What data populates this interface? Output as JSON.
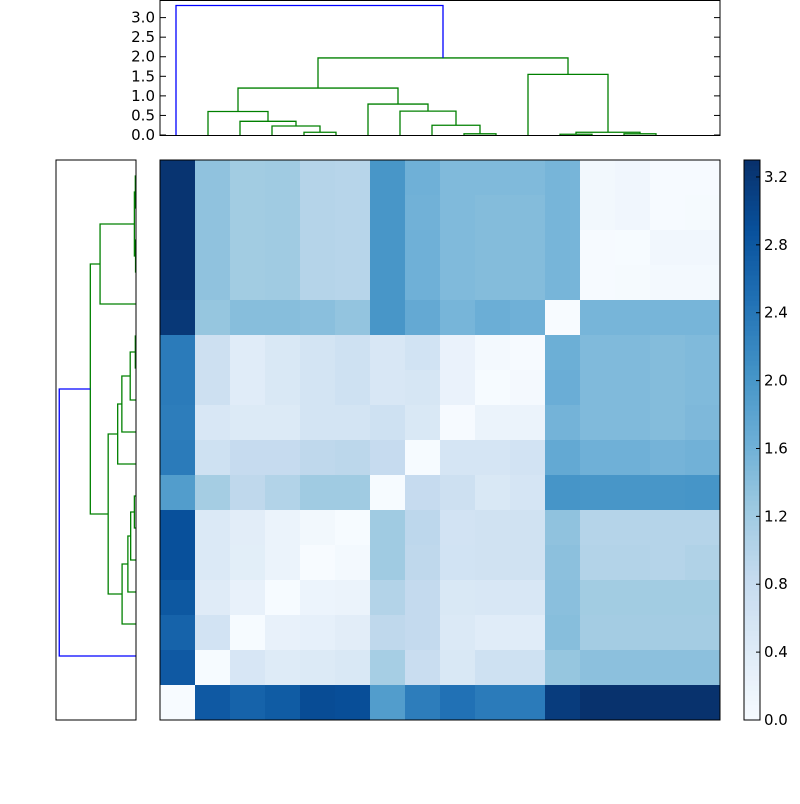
{
  "chart_data": {
    "type": "heatmap",
    "title": "",
    "colormap": "Blues",
    "color_range": [
      0.0,
      3.3
    ],
    "colorbar": {
      "ticks": [
        0.0,
        0.4,
        0.8,
        1.2,
        1.6,
        2.0,
        2.4,
        2.8,
        3.2
      ],
      "tick_labels": [
        "0.0",
        "0.4",
        "0.8",
        "1.2",
        "1.6",
        "2.0",
        "2.4",
        "2.8",
        "3.2"
      ],
      "placement": "right"
    },
    "matrix_rows_top_to_bottom": [
      [
        3.25,
        1.35,
        1.2,
        1.22,
        1.0,
        0.98,
        2.0,
        1.62,
        1.48,
        1.48,
        1.48,
        1.55,
        0.08,
        0.12,
        0.02,
        0.02
      ],
      [
        3.25,
        1.35,
        1.2,
        1.22,
        1.0,
        0.98,
        2.0,
        1.6,
        1.48,
        1.45,
        1.45,
        1.55,
        0.08,
        0.12,
        0.02,
        0.03
      ],
      [
        3.25,
        1.35,
        1.2,
        1.22,
        1.0,
        0.98,
        2.0,
        1.62,
        1.48,
        1.45,
        1.45,
        1.55,
        0.02,
        0.01,
        0.1,
        0.1
      ],
      [
        3.25,
        1.35,
        1.2,
        1.22,
        1.0,
        0.98,
        2.0,
        1.62,
        1.48,
        1.45,
        1.45,
        1.55,
        0.02,
        0.03,
        0.06,
        0.06
      ],
      [
        3.2,
        1.3,
        1.42,
        1.42,
        1.4,
        1.33,
        2.0,
        1.72,
        1.55,
        1.65,
        1.62,
        0.0,
        1.55,
        1.55,
        1.55,
        1.55
      ],
      [
        2.35,
        0.7,
        0.38,
        0.5,
        0.6,
        0.68,
        0.52,
        0.63,
        0.22,
        0.06,
        0.02,
        1.64,
        1.48,
        1.48,
        1.45,
        1.48
      ],
      [
        2.35,
        0.7,
        0.38,
        0.5,
        0.6,
        0.68,
        0.52,
        0.55,
        0.22,
        0.01,
        0.05,
        1.66,
        1.48,
        1.48,
        1.45,
        1.48
      ],
      [
        2.33,
        0.52,
        0.45,
        0.45,
        0.6,
        0.6,
        0.68,
        0.5,
        0.02,
        0.2,
        0.2,
        1.58,
        1.48,
        1.48,
        1.45,
        1.5
      ],
      [
        2.35,
        0.68,
        0.83,
        0.83,
        0.9,
        0.93,
        0.82,
        0.01,
        0.57,
        0.57,
        0.62,
        1.73,
        1.62,
        1.62,
        1.57,
        1.6
      ],
      [
        1.9,
        1.17,
        0.9,
        1.03,
        1.22,
        1.22,
        0.01,
        0.83,
        0.7,
        0.5,
        0.57,
        2.02,
        2.0,
        2.0,
        2.0,
        2.02
      ],
      [
        2.9,
        0.47,
        0.35,
        0.2,
        0.08,
        0.01,
        1.22,
        0.92,
        0.62,
        0.65,
        0.65,
        1.35,
        1.0,
        1.0,
        1.0,
        1.0
      ],
      [
        2.9,
        0.47,
        0.34,
        0.2,
        0.0,
        0.06,
        1.22,
        0.9,
        0.63,
        0.65,
        0.65,
        1.38,
        1.02,
        1.02,
        1.0,
        1.05
      ],
      [
        2.8,
        0.4,
        0.25,
        0.01,
        0.18,
        0.2,
        1.02,
        0.85,
        0.5,
        0.52,
        0.52,
        1.4,
        1.2,
        1.2,
        1.2,
        1.2
      ],
      [
        2.65,
        0.62,
        0.01,
        0.25,
        0.28,
        0.35,
        0.9,
        0.85,
        0.47,
        0.38,
        0.38,
        1.42,
        1.18,
        1.18,
        1.18,
        1.18
      ],
      [
        2.78,
        0.01,
        0.53,
        0.42,
        0.45,
        0.5,
        1.15,
        0.78,
        0.5,
        0.68,
        0.68,
        1.3,
        1.38,
        1.38,
        1.38,
        1.38
      ],
      [
        0.0,
        2.78,
        2.65,
        2.75,
        2.95,
        2.92,
        1.9,
        2.33,
        2.48,
        2.35,
        2.35,
        3.15,
        3.28,
        3.28,
        3.28,
        3.28
      ]
    ],
    "top_dendrogram": {
      "ylim": [
        0,
        3.45
      ],
      "yticks": [
        0.0,
        0.5,
        1.0,
        1.5,
        2.0,
        2.5,
        3.0
      ],
      "ytick_labels": [
        "0.0",
        "0.5",
        "1.0",
        "1.5",
        "2.0",
        "2.5",
        "3.0"
      ],
      "leaf_count": 16,
      "links_leafpos_left_right_height_childheights_color": [
        [
          4,
          5,
          0.07,
          0,
          0,
          "#008000"
        ],
        [
          3,
          4.5,
          0.23,
          0,
          0.07,
          "#008000"
        ],
        [
          2,
          3.75,
          0.35,
          0,
          0.23,
          "#008000"
        ],
        [
          1,
          2.875,
          0.6,
          0,
          0.35,
          "#008000"
        ],
        [
          9,
          10,
          0.03,
          0,
          0,
          "#008000"
        ],
        [
          8,
          9.5,
          0.25,
          0,
          0.03,
          "#008000"
        ],
        [
          7,
          8.75,
          0.61,
          0,
          0.25,
          "#008000"
        ],
        [
          6,
          7.875,
          0.79,
          0,
          0.61,
          "#008000"
        ],
        [
          1.9375,
          6.9375,
          1.2,
          0.6,
          0.79,
          "#008000"
        ],
        [
          12,
          13,
          0.02,
          0,
          0,
          "#008000"
        ],
        [
          14,
          15,
          0.03,
          0,
          0,
          "#008000"
        ],
        [
          12.5,
          14.5,
          0.07,
          0.02,
          0.03,
          "#008000"
        ],
        [
          11,
          13.5,
          1.55,
          0,
          0.07,
          "#008000"
        ],
        [
          4.4375,
          12.25,
          1.97,
          1.2,
          1.55,
          "#008000"
        ],
        [
          0,
          8.34375,
          3.31,
          0,
          1.97,
          "#0000ff"
        ]
      ]
    },
    "left_dendrogram": {
      "orientation": "mirrors top dendrogram, leaves reversed top-to-bottom",
      "xlim": [
        0,
        3.45
      ]
    }
  }
}
